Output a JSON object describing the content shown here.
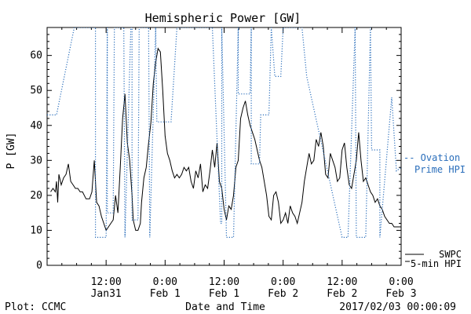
{
  "chart_data": {
    "type": "line",
    "title": "Hemispheric Power [GW]",
    "ylabel": "P [GW]",
    "xlabel": "Date and Time",
    "ylim": [
      0,
      68
    ],
    "y_ticks": [
      0,
      10,
      20,
      30,
      40,
      50,
      60
    ],
    "x_ticks": [
      {
        "t": 0.5,
        "time": "12:00",
        "date": "Jan31"
      },
      {
        "t": 1.0,
        "time": "0:00",
        "date": "Feb 1"
      },
      {
        "t": 1.5,
        "time": "12:00",
        "date": "Feb 1"
      },
      {
        "t": 2.0,
        "time": "0:00",
        "date": "Feb 2"
      },
      {
        "t": 2.5,
        "time": "12:00",
        "date": "Feb 2"
      },
      {
        "t": 3.0,
        "time": "0:00",
        "date": "Feb 3"
      }
    ],
    "x_axis_note": "x values are days relative to 2017-01-30 00:00 (UTC), range 0 to 3",
    "xlim": [
      0,
      3
    ],
    "grid": false,
    "legend_placement": "right",
    "series": [
      {
        "name": "SWPC 5-min HPI",
        "legend_lines": [
          "SWPC",
          "5-min HPI"
        ],
        "color": "#000000",
        "style": "solid",
        "x": [
          0.03,
          0.05,
          0.07,
          0.08,
          0.09,
          0.1,
          0.12,
          0.14,
          0.16,
          0.18,
          0.2,
          0.22,
          0.24,
          0.26,
          0.28,
          0.3,
          0.33,
          0.36,
          0.38,
          0.4,
          0.42,
          0.44,
          0.46,
          0.48,
          0.5,
          0.52,
          0.54,
          0.56,
          0.58,
          0.6,
          0.62,
          0.64,
          0.66,
          0.68,
          0.7,
          0.72,
          0.73,
          0.75,
          0.77,
          0.79,
          0.8,
          0.82,
          0.84,
          0.86,
          0.88,
          0.9,
          0.92,
          0.94,
          0.96,
          0.98,
          1.0,
          1.02,
          1.04,
          1.06,
          1.08,
          1.1,
          1.12,
          1.14,
          1.16,
          1.18,
          1.2,
          1.22,
          1.24,
          1.26,
          1.28,
          1.3,
          1.32,
          1.34,
          1.36,
          1.38,
          1.4,
          1.42,
          1.44,
          1.46,
          1.48,
          1.5,
          1.52,
          1.54,
          1.56,
          1.58,
          1.6,
          1.62,
          1.64,
          1.66,
          1.68,
          1.7,
          1.72,
          1.74,
          1.76,
          1.78,
          1.8,
          1.82,
          1.84,
          1.86,
          1.88,
          1.9,
          1.92,
          1.94,
          1.96,
          1.98,
          2.0,
          2.02,
          2.04,
          2.06,
          2.08,
          2.1,
          2.12,
          2.14,
          2.16,
          2.18,
          2.2,
          2.22,
          2.24,
          2.26,
          2.28,
          2.3,
          2.32,
          2.34,
          2.36,
          2.38,
          2.4,
          2.42,
          2.44,
          2.46,
          2.48,
          2.5,
          2.52,
          2.54,
          2.56,
          2.58,
          2.6,
          2.62,
          2.64,
          2.66,
          2.68,
          2.7,
          2.72,
          2.74,
          2.76,
          2.78,
          2.8,
          2.82,
          2.84,
          2.86,
          2.88,
          2.9,
          2.92,
          2.94,
          2.96,
          2.98,
          3.0
        ],
        "y": [
          21,
          22,
          21,
          24,
          18,
          26,
          23,
          25,
          26,
          29,
          24,
          23,
          22,
          22,
          21,
          21,
          19,
          19,
          21,
          30,
          18,
          17,
          14,
          12,
          10,
          11,
          12,
          13,
          20,
          15,
          28,
          42,
          49,
          35,
          30,
          20,
          13,
          10,
          10,
          12,
          18,
          25,
          28,
          35,
          41,
          52,
          58,
          62,
          61,
          50,
          37,
          32,
          30,
          27,
          25,
          26,
          25,
          26,
          28,
          27,
          28,
          24,
          22,
          27,
          25,
          29,
          21,
          23,
          22,
          27,
          33,
          28,
          35,
          24,
          22,
          16,
          13,
          17,
          16,
          20,
          28,
          30,
          42,
          45,
          47,
          43,
          40,
          38,
          36,
          33,
          30,
          28,
          24,
          20,
          14,
          13,
          20,
          21,
          18,
          12,
          13,
          15,
          12,
          17,
          15,
          14,
          12,
          15,
          18,
          24,
          28,
          32,
          29,
          30,
          36,
          34,
          38,
          34,
          26,
          25,
          32,
          30,
          28,
          24,
          25,
          33,
          35,
          28,
          23,
          22,
          26,
          30,
          38,
          30,
          24,
          25,
          23,
          21,
          20,
          18,
          19,
          17,
          16,
          14,
          13,
          12,
          12,
          11,
          11,
          11,
          11
        ],
        "x_note": "clipped series endpoint continues near 3.00"
      },
      {
        "name": "Ovation Prime HPI",
        "legend_lines": [
          "-- Ovation",
          "Prime HPI"
        ],
        "color": "#2a6ebb",
        "style": "dotted",
        "x": [
          0.0,
          0.08,
          0.23,
          0.4,
          0.41,
          0.41,
          0.5,
          0.51,
          0.51,
          0.56,
          0.57,
          0.65,
          0.66,
          0.66,
          0.71,
          0.72,
          0.72,
          0.77,
          0.78,
          0.86,
          0.87,
          0.87,
          0.92,
          0.93,
          1.0,
          1.05,
          1.1,
          1.4,
          1.47,
          1.48,
          1.48,
          1.52,
          1.58,
          1.62,
          1.62,
          1.72,
          1.73,
          1.73,
          1.8,
          1.81,
          1.88,
          1.9,
          1.93,
          1.98,
          2.0,
          2.01,
          2.02,
          2.16,
          2.2,
          2.5,
          2.55,
          2.61,
          2.62,
          2.7,
          2.74,
          2.75,
          2.82,
          2.82,
          2.92,
          2.96,
          3.0
        ],
        "y": [
          43,
          43,
          68,
          68,
          68,
          8,
          8,
          68,
          15,
          15,
          68,
          68,
          8,
          8,
          68,
          68,
          13,
          13,
          68,
          68,
          8,
          8,
          68,
          41,
          41,
          41,
          68,
          68,
          12,
          12,
          68,
          8,
          8,
          68,
          49,
          49,
          68,
          29,
          29,
          43,
          43,
          68,
          54,
          54,
          68,
          68,
          68,
          68,
          54,
          8,
          8,
          68,
          8,
          8,
          68,
          33,
          33,
          8,
          48,
          27,
          28
        ]
      }
    ]
  },
  "footer": {
    "left": "Plot: CCMC",
    "timestamp": "2017/02/03 00:00:09"
  }
}
